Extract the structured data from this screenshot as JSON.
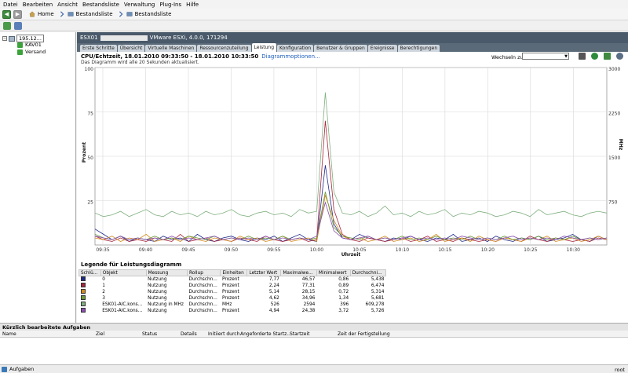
{
  "menu": [
    "Datei",
    "Bearbeiten",
    "Ansicht",
    "Bestandsliste",
    "Verwaltung",
    "Plug-Ins",
    "Hilfe"
  ],
  "nav": {
    "home": "Home",
    "crumb1": "Bestandsliste",
    "crumb2": "Bestandsliste"
  },
  "tree": {
    "host": "195.12...",
    "vm1": "KAV01",
    "vm2": "Versand"
  },
  "host_header": {
    "name": "ESX01",
    "product": "VMware ESXi, 4.0.0, 171294"
  },
  "tabs": [
    "Erste Schritte",
    "Übersicht",
    "Virtuelle Maschinen",
    "Ressourcenzuteilung",
    "Leistung",
    "Konfiguration",
    "Benutzer & Gruppen",
    "Ereignisse",
    "Berechtigungen"
  ],
  "active_tab": "Leistung",
  "chart_header": {
    "title": "CPU/Echtzeit, 18.01.2010 09:33:50 - 18.01.2010 10:33:50",
    "options_link": "Diagrammoptionen...",
    "subtitle": "Das Diagramm wird alle 20 Sekunden aktualisiert.",
    "switch_label": "Wechseln zu:"
  },
  "chart_data": {
    "type": "line",
    "xlabel": "Uhrzeit",
    "ylabel_left": "Prozent",
    "ylabel_right": "MHz",
    "ylim_left": [
      0,
      100
    ],
    "ylim_right": [
      0,
      3000
    ],
    "yticks_left": [
      "100",
      "75",
      "50",
      "25"
    ],
    "yticks_right": [
      "3000",
      "2250",
      "1500",
      "750"
    ],
    "xticks": [
      "09:35",
      "09:40",
      "09:45",
      "09:50",
      "09:55",
      "10:00",
      "10:05",
      "10:10",
      "10:15",
      "10:20",
      "10:25",
      "10:30"
    ],
    "grid": true,
    "series": [
      {
        "name": "0",
        "color": "#1f2a8a",
        "values": [
          9,
          6,
          3,
          5,
          2,
          4,
          3,
          2,
          5,
          3,
          4,
          2,
          6,
          3,
          2,
          4,
          5,
          3,
          2,
          4,
          3,
          5,
          2,
          4,
          6,
          3,
          2,
          45,
          12,
          4,
          3,
          6,
          4,
          3,
          2,
          4,
          3,
          5,
          3,
          2,
          4,
          3,
          6,
          2,
          3,
          4,
          2,
          5,
          3,
          2,
          4,
          3,
          5,
          2,
          3,
          4,
          6,
          3,
          2,
          5,
          3
        ]
      },
      {
        "name": "1",
        "color": "#a8243a",
        "values": [
          5,
          3,
          2,
          4,
          2,
          3,
          2,
          4,
          3,
          2,
          6,
          2,
          3,
          4,
          2,
          3,
          2,
          4,
          3,
          2,
          5,
          3,
          2,
          3,
          4,
          2,
          3,
          70,
          20,
          6,
          3,
          2,
          4,
          3,
          2,
          3,
          4,
          2,
          3,
          5,
          2,
          3,
          2,
          4,
          3,
          2,
          3,
          2,
          4,
          3,
          2,
          5,
          3,
          2,
          4,
          3,
          2,
          3,
          2,
          4,
          3
        ]
      },
      {
        "name": "2",
        "color": "#d48a1c",
        "values": [
          4,
          3,
          5,
          2,
          4,
          3,
          6,
          2,
          3,
          4,
          2,
          5,
          3,
          2,
          4,
          3,
          2,
          5,
          3,
          4,
          2,
          3,
          5,
          2,
          3,
          4,
          2,
          28,
          14,
          5,
          3,
          4,
          2,
          3,
          5,
          2,
          3,
          4,
          2,
          3,
          6,
          2,
          3,
          4,
          2,
          5,
          3,
          2,
          4,
          3,
          2,
          4,
          3,
          5,
          2,
          3,
          4,
          2,
          3,
          5,
          3
        ]
      },
      {
        "name": "3",
        "color": "#6a9a3a",
        "values": [
          6,
          4,
          3,
          5,
          3,
          4,
          3,
          5,
          3,
          4,
          3,
          5,
          4,
          3,
          5,
          3,
          4,
          3,
          5,
          3,
          4,
          3,
          5,
          3,
          4,
          3,
          4,
          30,
          10,
          5,
          4,
          3,
          5,
          3,
          4,
          3,
          5,
          3,
          4,
          3,
          5,
          3,
          4,
          3,
          5,
          3,
          4,
          3,
          5,
          3,
          4,
          3,
          5,
          3,
          4,
          3,
          5,
          3,
          4,
          3,
          4
        ]
      },
      {
        "name": "ESK01-AIC.kons...",
        "color": "#7fb07f",
        "values": [
          18,
          16,
          17,
          19,
          16,
          18,
          20,
          17,
          16,
          19,
          17,
          18,
          16,
          19,
          17,
          18,
          20,
          17,
          16,
          18,
          19,
          17,
          18,
          16,
          20,
          18,
          19,
          86,
          30,
          18,
          17,
          19,
          16,
          18,
          22,
          17,
          18,
          16,
          19,
          17,
          18,
          20,
          16,
          18,
          17,
          19,
          18,
          16,
          17,
          19,
          18,
          16,
          20,
          17,
          18,
          19,
          17,
          16,
          18,
          19,
          18
        ]
      },
      {
        "name": "ESK01-AIC.kons...",
        "color": "#8a4fb0",
        "values": [
          5,
          4,
          3,
          5,
          3,
          4,
          3,
          4,
          3,
          5,
          3,
          4,
          3,
          4,
          5,
          3,
          4,
          3,
          4,
          3,
          5,
          3,
          4,
          3,
          4,
          3,
          5,
          24,
          8,
          4,
          3,
          4,
          5,
          3,
          4,
          3,
          4,
          5,
          3,
          4,
          3,
          4,
          3,
          5,
          4,
          3,
          4,
          3,
          4,
          5,
          3,
          4,
          3,
          4,
          3,
          5,
          4,
          3,
          4,
          3,
          4
        ]
      }
    ]
  },
  "legend": {
    "title": "Legende für Leistungsdiagramm",
    "columns": [
      "Schlü...",
      "Objekt",
      "Messung",
      "Rollup",
      "Einheiten",
      "Letzter Wert",
      "Maximalwe...",
      "Minimalwert",
      "Durchschni..."
    ],
    "rows": [
      {
        "color": "#1f2a8a",
        "object": "0",
        "measure": "Nutzung",
        "rollup": "Durchschn...",
        "unit": "Prozent",
        "last": "7,77",
        "max": "46,57",
        "min": "0,86",
        "avg": "5,438"
      },
      {
        "color": "#a8243a",
        "object": "1",
        "measure": "Nutzung",
        "rollup": "Durchschn...",
        "unit": "Prozent",
        "last": "2,24",
        "max": "77,31",
        "min": "0,89",
        "avg": "6,474"
      },
      {
        "color": "#d48a1c",
        "object": "2",
        "measure": "Nutzung",
        "rollup": "Durchschn...",
        "unit": "Prozent",
        "last": "5,14",
        "max": "28,15",
        "min": "0,72",
        "avg": "5,314"
      },
      {
        "color": "#6a9a3a",
        "object": "3",
        "measure": "Nutzung",
        "rollup": "Durchschn...",
        "unit": "Prozent",
        "last": "4,62",
        "max": "34,96",
        "min": "1,34",
        "avg": "5,681"
      },
      {
        "color": "#7fb07f",
        "object": "ESK01-AIC.kons...",
        "measure": "Nutzung in MHz",
        "rollup": "Durchschn...",
        "unit": "MHz",
        "last": "526",
        "max": "2594",
        "min": "396",
        "avg": "609,278"
      },
      {
        "color": "#8a4fb0",
        "object": "ESK01-AIC.kons...",
        "measure": "Nutzung",
        "rollup": "Durchschn...",
        "unit": "Prozent",
        "last": "4,94",
        "max": "24,38",
        "min": "3,72",
        "avg": "5,726"
      }
    ]
  },
  "recent_tasks": {
    "title": "Kürzlich bearbeitete Aufgaben",
    "columns": [
      "Name",
      "Ziel",
      "Status",
      "Details",
      "Initiiert durch",
      "Angeforderte Startz...",
      "Startzeit",
      "Zeit der Fertigstellung"
    ]
  },
  "statusbar": {
    "tasks": "Aufgaben",
    "user": "root"
  }
}
